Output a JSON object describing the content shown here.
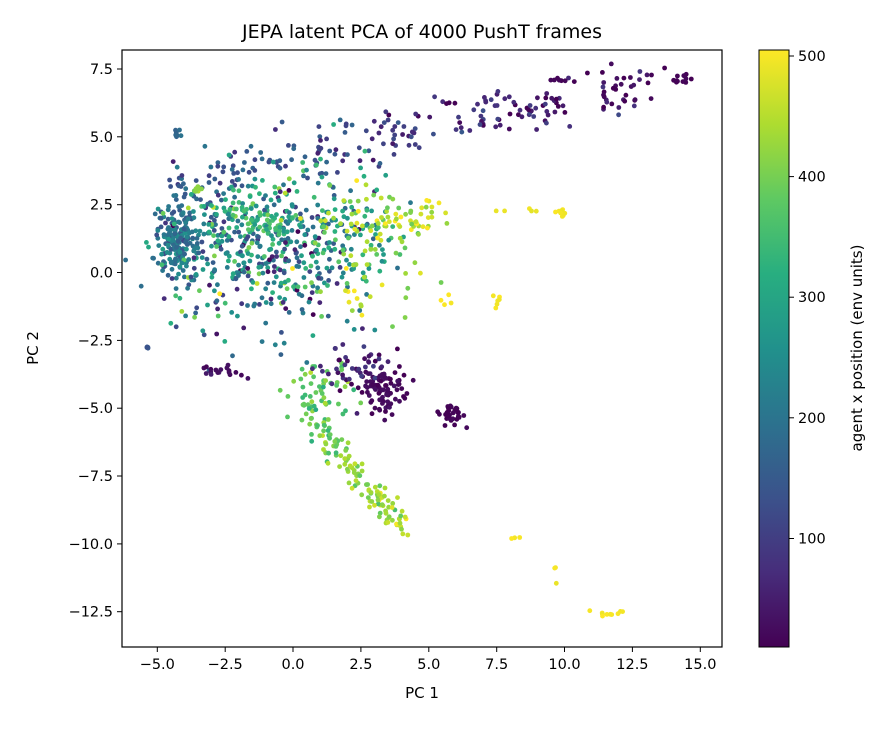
{
  "chart_data": {
    "type": "scatter",
    "title": "JEPA latent PCA of 4000 PushT frames",
    "xlabel": "PC 1",
    "ylabel": "PC 2",
    "xlim": [
      -6.3,
      15.8
    ],
    "ylim": [
      -13.8,
      8.2
    ],
    "xticks": [
      -5.0,
      -2.5,
      0.0,
      2.5,
      5.0,
      7.5,
      10.0,
      12.5,
      15.0
    ],
    "xtick_labels": [
      "−5.0",
      "−2.5",
      "0.0",
      "2.5",
      "5.0",
      "7.5",
      "10.0",
      "12.5",
      "15.0"
    ],
    "yticks": [
      7.5,
      5.0,
      2.5,
      0.0,
      -2.5,
      -5.0,
      -7.5,
      -10.0,
      -12.5
    ],
    "ytick_labels": [
      "7.5",
      "5.0",
      "2.5",
      "0.0",
      "−2.5",
      "−5.0",
      "−7.5",
      "−10.0",
      "−12.5"
    ],
    "colorbar": {
      "label": "agent x position (env units)",
      "colormap": "viridis",
      "range": [
        10,
        505
      ],
      "ticks": [
        100,
        200,
        300,
        400,
        500
      ],
      "tick_labels": [
        "100",
        "200",
        "300",
        "400",
        "500"
      ]
    },
    "grid": false,
    "points_note_count": 4000,
    "clusters": [
      {
        "cx": -4.3,
        "cy": 1.3,
        "sx": 0.35,
        "sy": 0.65,
        "n": 180,
        "c": 190,
        "cs": 40
      },
      {
        "cx": -2.5,
        "cy": 0.8,
        "sx": 1.3,
        "sy": 1.4,
        "n": 220,
        "c": 230,
        "cs": 90
      },
      {
        "cx": 0.2,
        "cy": 0.8,
        "sx": 1.5,
        "sy": 1.6,
        "n": 260,
        "c": 200,
        "cs": 120
      },
      {
        "cx": -1.5,
        "cy": 1.9,
        "sx": 1.0,
        "sy": 0.4,
        "n": 70,
        "c": 330,
        "cs": 40
      },
      {
        "cx": 1.8,
        "cy": 1.5,
        "sx": 1.2,
        "sy": 1.2,
        "n": 90,
        "c": 300,
        "cs": 80
      },
      {
        "cx": 2.9,
        "cy": 1.9,
        "sx": 1.1,
        "sy": 0.6,
        "n": 60,
        "c": 440,
        "cs": 40
      },
      {
        "cx": 4.5,
        "cy": 2.1,
        "sx": 0.7,
        "sy": 0.3,
        "n": 25,
        "c": 470,
        "cs": 25
      },
      {
        "cx": 3.0,
        "cy": -0.3,
        "sx": 0.9,
        "sy": 0.9,
        "n": 30,
        "c": 440,
        "cs": 40
      },
      {
        "cx": 1.0,
        "cy": -4.5,
        "sx": 0.6,
        "sy": 0.5,
        "n": 50,
        "c": 380,
        "cs": 40
      },
      {
        "cx": 3.3,
        "cy": -4.3,
        "sx": 0.45,
        "sy": 0.45,
        "n": 90,
        "c": 20,
        "cs": 10
      },
      {
        "cx": 2.3,
        "cy": -3.5,
        "sx": 0.7,
        "sy": 0.4,
        "n": 40,
        "c": 60,
        "cs": 30
      },
      {
        "cx": 5.8,
        "cy": -5.2,
        "sx": 0.25,
        "sy": 0.25,
        "n": 30,
        "c": 12,
        "cs": 5
      },
      {
        "cx": -2.5,
        "cy": -3.7,
        "sx": 0.35,
        "sy": 0.12,
        "n": 18,
        "c": 30,
        "cs": 10
      },
      {
        "cx": -3.5,
        "cy": 3.1,
        "sx": 0.1,
        "sy": 0.08,
        "n": 8,
        "c": 420,
        "cs": 15
      },
      {
        "cx": -4.3,
        "cy": 5.1,
        "sx": 0.08,
        "sy": 0.1,
        "n": 7,
        "c": 180,
        "cs": 20
      },
      {
        "cx": -5.3,
        "cy": -2.8,
        "sx": 0.05,
        "sy": 0.04,
        "n": 4,
        "c": 130,
        "cs": 10
      },
      {
        "cx": 9.9,
        "cy": 2.2,
        "sx": 0.12,
        "sy": 0.06,
        "n": 8,
        "c": 500,
        "cs": 5
      },
      {
        "cx": 8.5,
        "cy": 2.3,
        "sx": 0.6,
        "sy": 0.06,
        "n": 5,
        "c": 495,
        "cs": 5
      },
      {
        "cx": 7.5,
        "cy": -1.0,
        "sx": 0.1,
        "sy": 0.15,
        "n": 6,
        "c": 500,
        "cs": 5
      },
      {
        "cx": 5.6,
        "cy": -1.0,
        "sx": 0.15,
        "sy": 0.3,
        "n": 4,
        "c": 500,
        "cs": 5
      },
      {
        "cx": 8.1,
        "cy": -9.8,
        "sx": 0.15,
        "sy": 0.05,
        "n": 3,
        "c": 500,
        "cs": 5
      },
      {
        "cx": 9.7,
        "cy": -11.0,
        "sx": 0.05,
        "sy": 0.3,
        "n": 3,
        "c": 500,
        "cs": 5
      },
      {
        "cx": 11.7,
        "cy": -12.5,
        "sx": 0.25,
        "sy": 0.15,
        "n": 10,
        "c": 500,
        "cs": 5
      },
      {
        "cx": 14.4,
        "cy": 7.1,
        "sx": 0.2,
        "sy": 0.08,
        "n": 12,
        "c": 15,
        "cs": 5
      },
      {
        "cx": 9.7,
        "cy": 7.1,
        "sx": 0.15,
        "sy": 0.06,
        "n": 6,
        "c": 20,
        "cs": 5
      }
    ],
    "bands": [
      {
        "x0": -4.5,
        "y0": 3.0,
        "x1": 13.5,
        "y1": 6.9,
        "w": 0.6,
        "n": 230,
        "c0": 160,
        "c1": 20,
        "cs": 40
      },
      {
        "x0": 0.5,
        "y0": -4.8,
        "x1": 4.0,
        "y1": -9.3,
        "w": 0.35,
        "n": 130,
        "c0": 380,
        "c1": 450,
        "cs": 30
      }
    ]
  }
}
